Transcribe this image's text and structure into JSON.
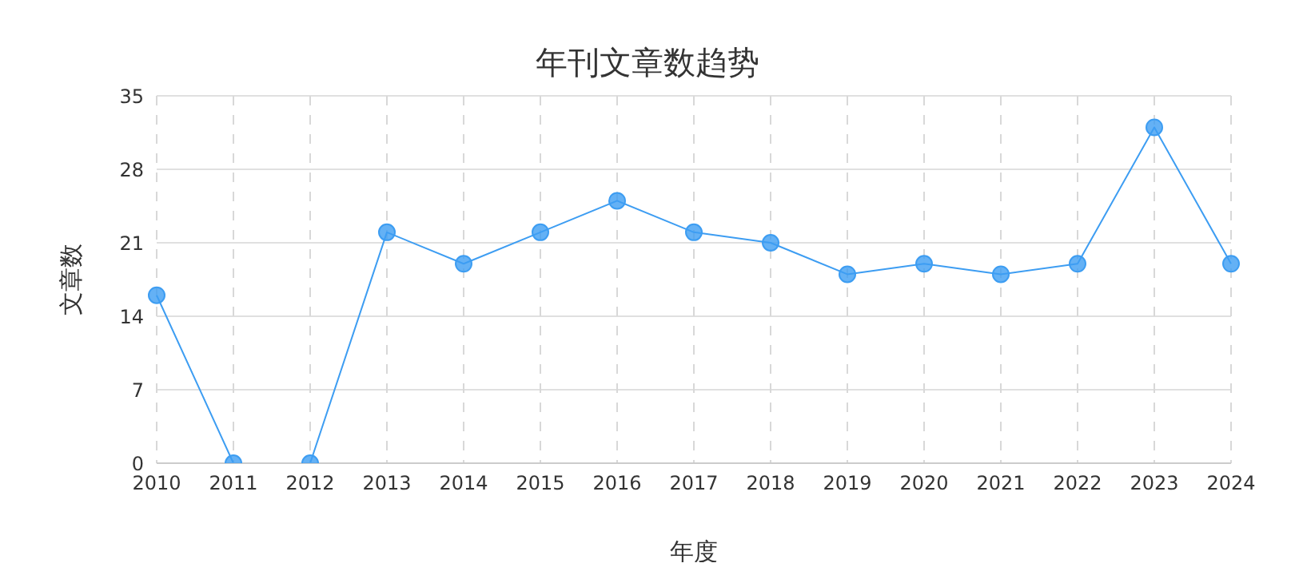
{
  "chart_data": {
    "type": "line",
    "title": "年刊文章数趋势",
    "xlabel": "年度",
    "ylabel": "文章数",
    "categories": [
      "2010",
      "2011",
      "2012",
      "2013",
      "2014",
      "2015",
      "2016",
      "2017",
      "2018",
      "2019",
      "2020",
      "2021",
      "2022",
      "2023",
      "2024"
    ],
    "series": [
      {
        "color": "#3d9df2",
        "values": [
          16,
          0,
          0,
          22,
          19,
          22,
          25,
          22,
          21,
          18,
          19,
          18,
          19,
          32,
          19
        ]
      }
    ],
    "ylim": [
      0,
      35
    ],
    "yticks": [
      0,
      7,
      14,
      21,
      28,
      35
    ],
    "grid": true,
    "marker": "circle",
    "line_style": "solid"
  }
}
